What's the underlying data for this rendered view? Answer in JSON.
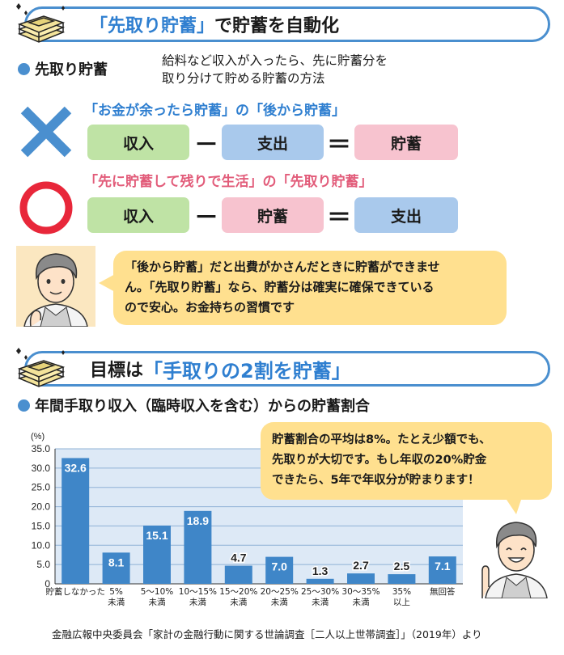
{
  "section1": {
    "title_em": "「先取り貯蓄」",
    "title_rest": "で貯蓄を自動化"
  },
  "definition": {
    "term": "先取り貯蓄",
    "text_line1": "給料など収入が入ったら、先に貯蓄分を",
    "text_line2": "取り分けて貯める貯蓄の方法"
  },
  "bad_equation": {
    "title": "「お金が余ったら貯蓄」の「後から貯蓄」",
    "term1": "収入",
    "op1": "－",
    "term2": "支出",
    "op2": "＝",
    "result": "貯蓄"
  },
  "good_equation": {
    "title": "「先に貯蓄して残りで生活」の「先取り貯蓄」",
    "term1": "収入",
    "op1": "－",
    "term2": "貯蓄",
    "op2": "＝",
    "result": "支出"
  },
  "bubble1": {
    "line1": "「後から貯蓄」だと出費がかさんだときに貯蓄ができませ",
    "line2": "ん。「先取り貯蓄」なら、貯蓄分は確実に確保できている",
    "line3": "ので安心。お金持ちの習慣です"
  },
  "section2": {
    "title_rest": "目標は",
    "title_em": "「手取りの2割を貯蓄」"
  },
  "chart_heading": "年間手取り収入（臨時収入を含む）からの貯蓄割合",
  "bubble2": {
    "line1": "貯蓄割合の平均は8%。たとえ少額でも、",
    "line2": "先取りが大切です。もし年収の20%貯金",
    "line3": "できたら、5年で年収分が貯まります！"
  },
  "chart_data": {
    "type": "bar",
    "categories": [
      [
        "貯蓄しなかった"
      ],
      [
        "5%",
        "未満"
      ],
      [
        "5～10%",
        "未満"
      ],
      [
        "10～15%",
        "未満"
      ],
      [
        "15～20%",
        "未満"
      ],
      [
        "20～25%",
        "未満"
      ],
      [
        "25～30%",
        "未満"
      ],
      [
        "30～35%",
        "未満"
      ],
      [
        "35%",
        "以上"
      ],
      [
        "無回答"
      ]
    ],
    "values": [
      32.6,
      8.1,
      15.1,
      18.9,
      4.7,
      7.0,
      1.3,
      2.7,
      2.5,
      7.1
    ],
    "value_labels": [
      "32.6",
      "8.1",
      "15.1",
      "18.9",
      "4.7",
      "7.0",
      "1.3",
      "2.7",
      "2.5",
      "7.1"
    ],
    "ylabel": "(%)",
    "ylim": [
      0,
      35
    ],
    "yticks": [
      "0",
      "5.0",
      "10.0",
      "15.0",
      "20.0",
      "25.0",
      "30.0",
      "35.0"
    ],
    "grid": true,
    "bar_color": "#3f86c8",
    "plot_bg": "#dde9f6"
  },
  "source": "金融広報中央委員会「家計の金融行動に関する世論調査［二人以上世帯調査］」（2019年）より"
}
